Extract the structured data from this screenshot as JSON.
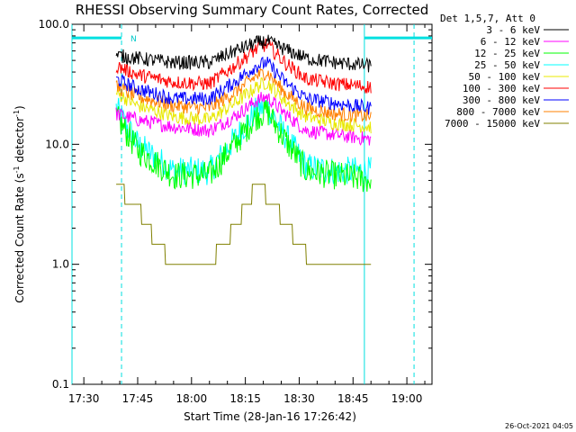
{
  "chart_data": {
    "type": "line",
    "title": "RHESSI Observing Summary Count Rates, Corrected",
    "xlabel": "Start Time (28-Jan-16 17:26:42)",
    "ylabel": "Corrected Count Rate (s",
    "ylabel_sup1": "-1",
    "ylabel_mid": " detector",
    "ylabel_sup2": "-1",
    "ylabel_end": ")",
    "yscale": "log",
    "ylim": [
      0.1,
      100
    ],
    "xlim": [
      "17:26:42",
      "19:07:00"
    ],
    "x_ticks": [
      "17:30",
      "17:45",
      "18:00",
      "18:15",
      "18:30",
      "18:45",
      "19:00"
    ],
    "y_ticks": [
      "100.0",
      "10.0",
      "1.0",
      "0.1"
    ],
    "grid": false,
    "legend_position": "right",
    "legend_header": "Det 1,5,7, Att 0",
    "series": [
      {
        "name": "3 - 6 keV",
        "color": "#000000",
        "x": [
          "17:39",
          "17:45",
          "17:55",
          "18:05",
          "18:12",
          "18:18",
          "18:21",
          "18:26",
          "18:32",
          "18:40",
          "18:50"
        ],
        "values": [
          55,
          52,
          48,
          48,
          60,
          70,
          72,
          62,
          52,
          48,
          45
        ]
      },
      {
        "name": "6 - 12 keV",
        "color": "#ff00ff",
        "x": [
          "17:39",
          "17:45",
          "17:55",
          "18:05",
          "18:12",
          "18:18",
          "18:21",
          "18:26",
          "18:32",
          "18:40",
          "18:50"
        ],
        "values": [
          18,
          16,
          14,
          13,
          17,
          23,
          25,
          18,
          13,
          12,
          11
        ]
      },
      {
        "name": "12 - 25 keV",
        "color": "#00ff00",
        "x": [
          "17:39",
          "17:45",
          "17:55",
          "18:05",
          "18:12",
          "18:18",
          "18:21",
          "18:26",
          "18:32",
          "18:40",
          "18:50"
        ],
        "values": [
          17,
          9,
          5.5,
          5.5,
          10,
          17,
          19,
          11,
          6,
          5.5,
          5
        ]
      },
      {
        "name": "25 - 50 keV",
        "color": "#00ffff",
        "x": [
          "17:39",
          "17:45",
          "17:55",
          "18:05",
          "18:12",
          "18:18",
          "18:21",
          "18:26",
          "18:32",
          "18:40",
          "18:50"
        ],
        "values": [
          20,
          10,
          6,
          6,
          11,
          19,
          21,
          12,
          6.5,
          6,
          6
        ]
      },
      {
        "name": "50 - 100 keV",
        "color": "#e8e800",
        "x": [
          "17:39",
          "17:45",
          "17:55",
          "18:05",
          "18:12",
          "18:18",
          "18:21",
          "18:26",
          "18:32",
          "18:40",
          "18:50"
        ],
        "values": [
          27,
          21,
          17,
          16,
          22,
          30,
          33,
          23,
          17,
          15,
          14
        ]
      },
      {
        "name": "100 - 300 keV",
        "color": "#ff0000",
        "x": [
          "17:39",
          "17:45",
          "17:55",
          "18:05",
          "18:12",
          "18:18",
          "18:21",
          "18:26",
          "18:32",
          "18:40",
          "18:50"
        ],
        "values": [
          45,
          38,
          33,
          32,
          45,
          62,
          68,
          48,
          35,
          32,
          30
        ]
      },
      {
        "name": "300 - 800 keV",
        "color": "#0000ff",
        "x": [
          "17:39",
          "17:45",
          "17:55",
          "18:05",
          "18:12",
          "18:18",
          "18:21",
          "18:26",
          "18:32",
          "18:40",
          "18:50"
        ],
        "values": [
          35,
          29,
          24,
          24,
          33,
          45,
          48,
          33,
          24,
          22,
          20
        ]
      },
      {
        "name": "800 - 7000 keV",
        "color": "#ff8000",
        "x": [
          "17:39",
          "17:45",
          "17:55",
          "18:05",
          "18:12",
          "18:18",
          "18:21",
          "18:26",
          "18:32",
          "18:40",
          "18:50"
        ],
        "values": [
          30,
          25,
          21,
          20,
          27,
          37,
          40,
          27,
          20,
          18,
          17
        ]
      },
      {
        "name": "7000 - 15000 keV",
        "color": "#808000",
        "x": [
          "17:39",
          "17:42",
          "17:45",
          "17:50",
          "17:55",
          "18:05",
          "18:12",
          "18:18",
          "18:22",
          "18:27",
          "18:32",
          "18:40",
          "18:50"
        ],
        "values": [
          5,
          3.5,
          3,
          1.5,
          1,
          1,
          2,
          4.5,
          3.5,
          2,
          1.2,
          1,
          1
        ]
      }
    ],
    "vlines": [
      {
        "x": "17:26:42",
        "style": "solid",
        "color": "#00e0e0"
      },
      {
        "x": "17:40:30",
        "style": "dashed",
        "color": "#00e0e0"
      },
      {
        "x": "18:48:10",
        "style": "solid",
        "color": "#00e0e0"
      },
      {
        "x": "19:02:00",
        "style": "dashed",
        "color": "#00e0e0"
      }
    ],
    "hbars": [
      {
        "x0": "17:26:42",
        "x1": "17:40:30",
        "value": 77,
        "color": "#00e0e0"
      },
      {
        "x0": "18:48:10",
        "x1": "19:07:00",
        "value": 77,
        "color": "#00e0e0"
      }
    ],
    "annotations": [
      {
        "text": "N",
        "x": "17:43:00",
        "value": 77,
        "color": "#00c8c8"
      }
    ],
    "footer_stamp": "26-Oct-2021 04:05"
  }
}
